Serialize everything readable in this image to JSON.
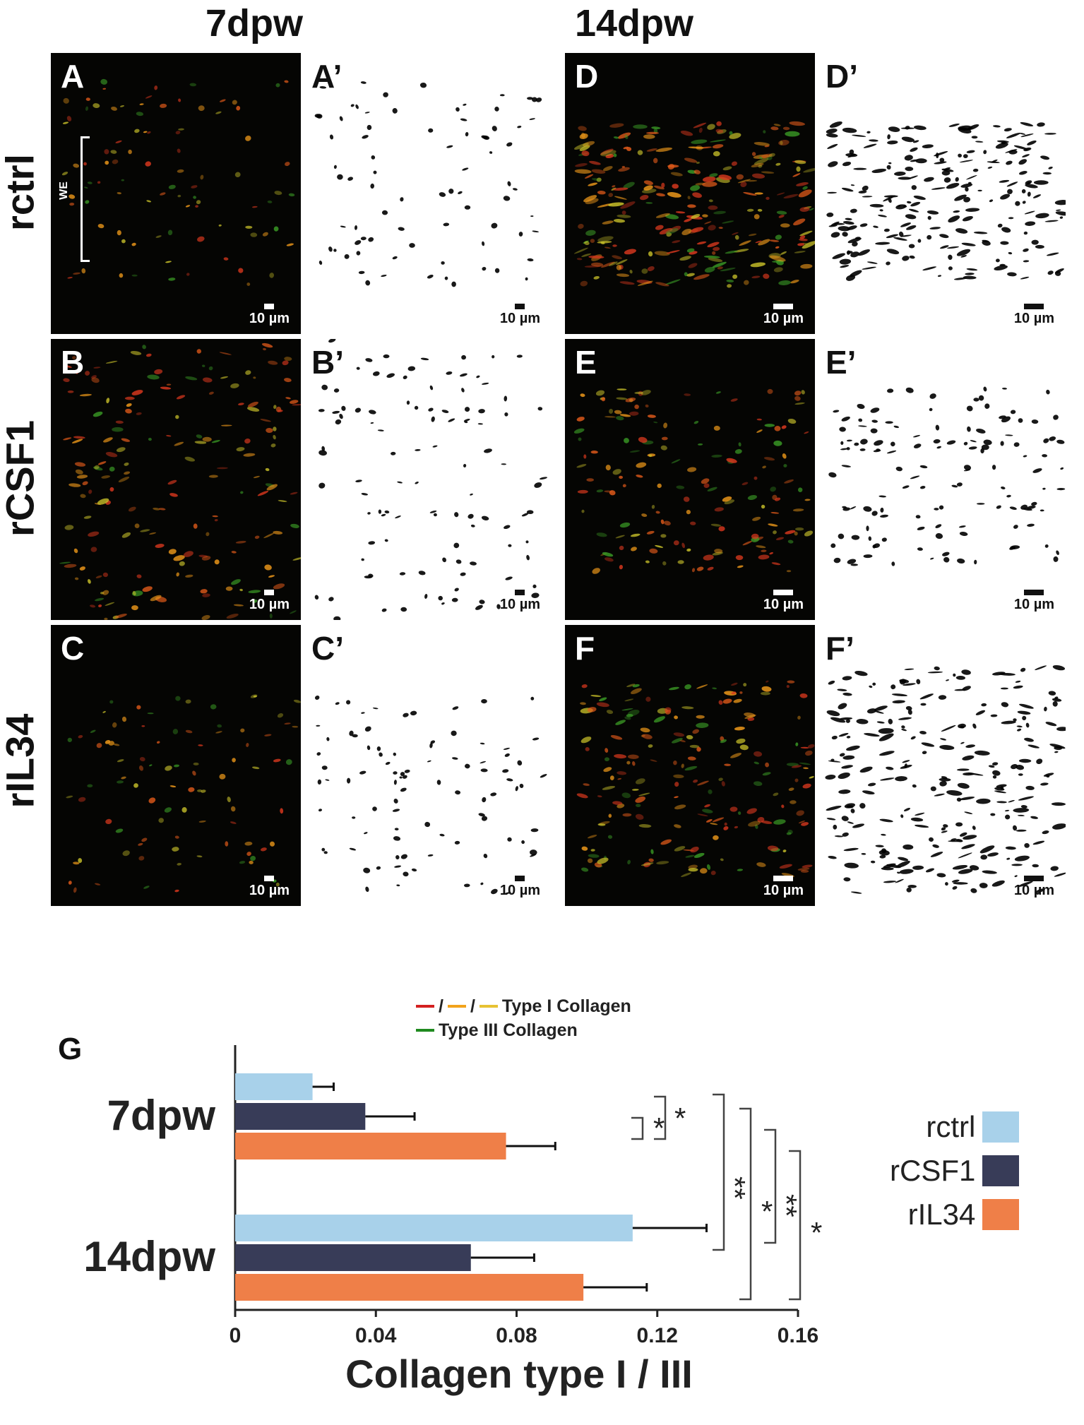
{
  "figure": {
    "column_headers": [
      "7dpw",
      "14dpw"
    ],
    "row_headers": [
      "rctrl",
      "rCSF1",
      "rIL34"
    ],
    "panels": [
      {
        "label": "A",
        "kind": "fluor",
        "scale": "10 µm",
        "bracket": "WE"
      },
      {
        "label": "A’",
        "kind": "binary",
        "scale": "10 µm"
      },
      {
        "label": "D",
        "kind": "fluor",
        "scale": "10 µm"
      },
      {
        "label": "D’",
        "kind": "binary",
        "scale": "10 µm"
      },
      {
        "label": "B",
        "kind": "fluor",
        "scale": "10 µm"
      },
      {
        "label": "B’",
        "kind": "binary",
        "scale": "10 µm"
      },
      {
        "label": "E",
        "kind": "fluor",
        "scale": "10 µm"
      },
      {
        "label": "E’",
        "kind": "binary",
        "scale": "10 µm"
      },
      {
        "label": "C",
        "kind": "fluor",
        "scale": "10 µm"
      },
      {
        "label": "C’",
        "kind": "binary",
        "scale": "10 µm"
      },
      {
        "label": "F",
        "kind": "fluor",
        "scale": "10 µm"
      },
      {
        "label": "F’",
        "kind": "binary",
        "scale": "10 µm"
      }
    ],
    "stain_legend": {
      "sep": "/",
      "type1_label": "Type I Collagen",
      "type3_label": "Type III Collagen",
      "type1_colors": [
        "#d42020",
        "#f2a31b",
        "#e7c233"
      ],
      "type3_color": "#1f8a1f"
    }
  },
  "chart_data": {
    "type": "bar",
    "orientation": "horizontal",
    "panel_label": "G",
    "categories": [
      "7dpw",
      "14dpw"
    ],
    "series": [
      {
        "name": "rctrl",
        "color": "#a8d1ea",
        "values": [
          0.022,
          0.113
        ],
        "errors": [
          0.006,
          0.021
        ]
      },
      {
        "name": "rCSF1",
        "color": "#383c58",
        "values": [
          0.037,
          0.067
        ],
        "errors": [
          0.014,
          0.018
        ]
      },
      {
        "name": "rIL34",
        "color": "#ef7f48",
        "values": [
          0.077,
          0.099
        ],
        "errors": [
          0.014,
          0.018
        ]
      }
    ],
    "xlabel": "Collagen type I / III",
    "ylabel": "",
    "xlim": [
      0,
      0.16
    ],
    "xticks": [
      "0",
      "0.04",
      "0.08",
      "0.12",
      "0.16"
    ],
    "significance": [
      "*",
      "*",
      "**",
      "*",
      "**",
      "*"
    ],
    "legend_position": "right",
    "grid": false
  }
}
